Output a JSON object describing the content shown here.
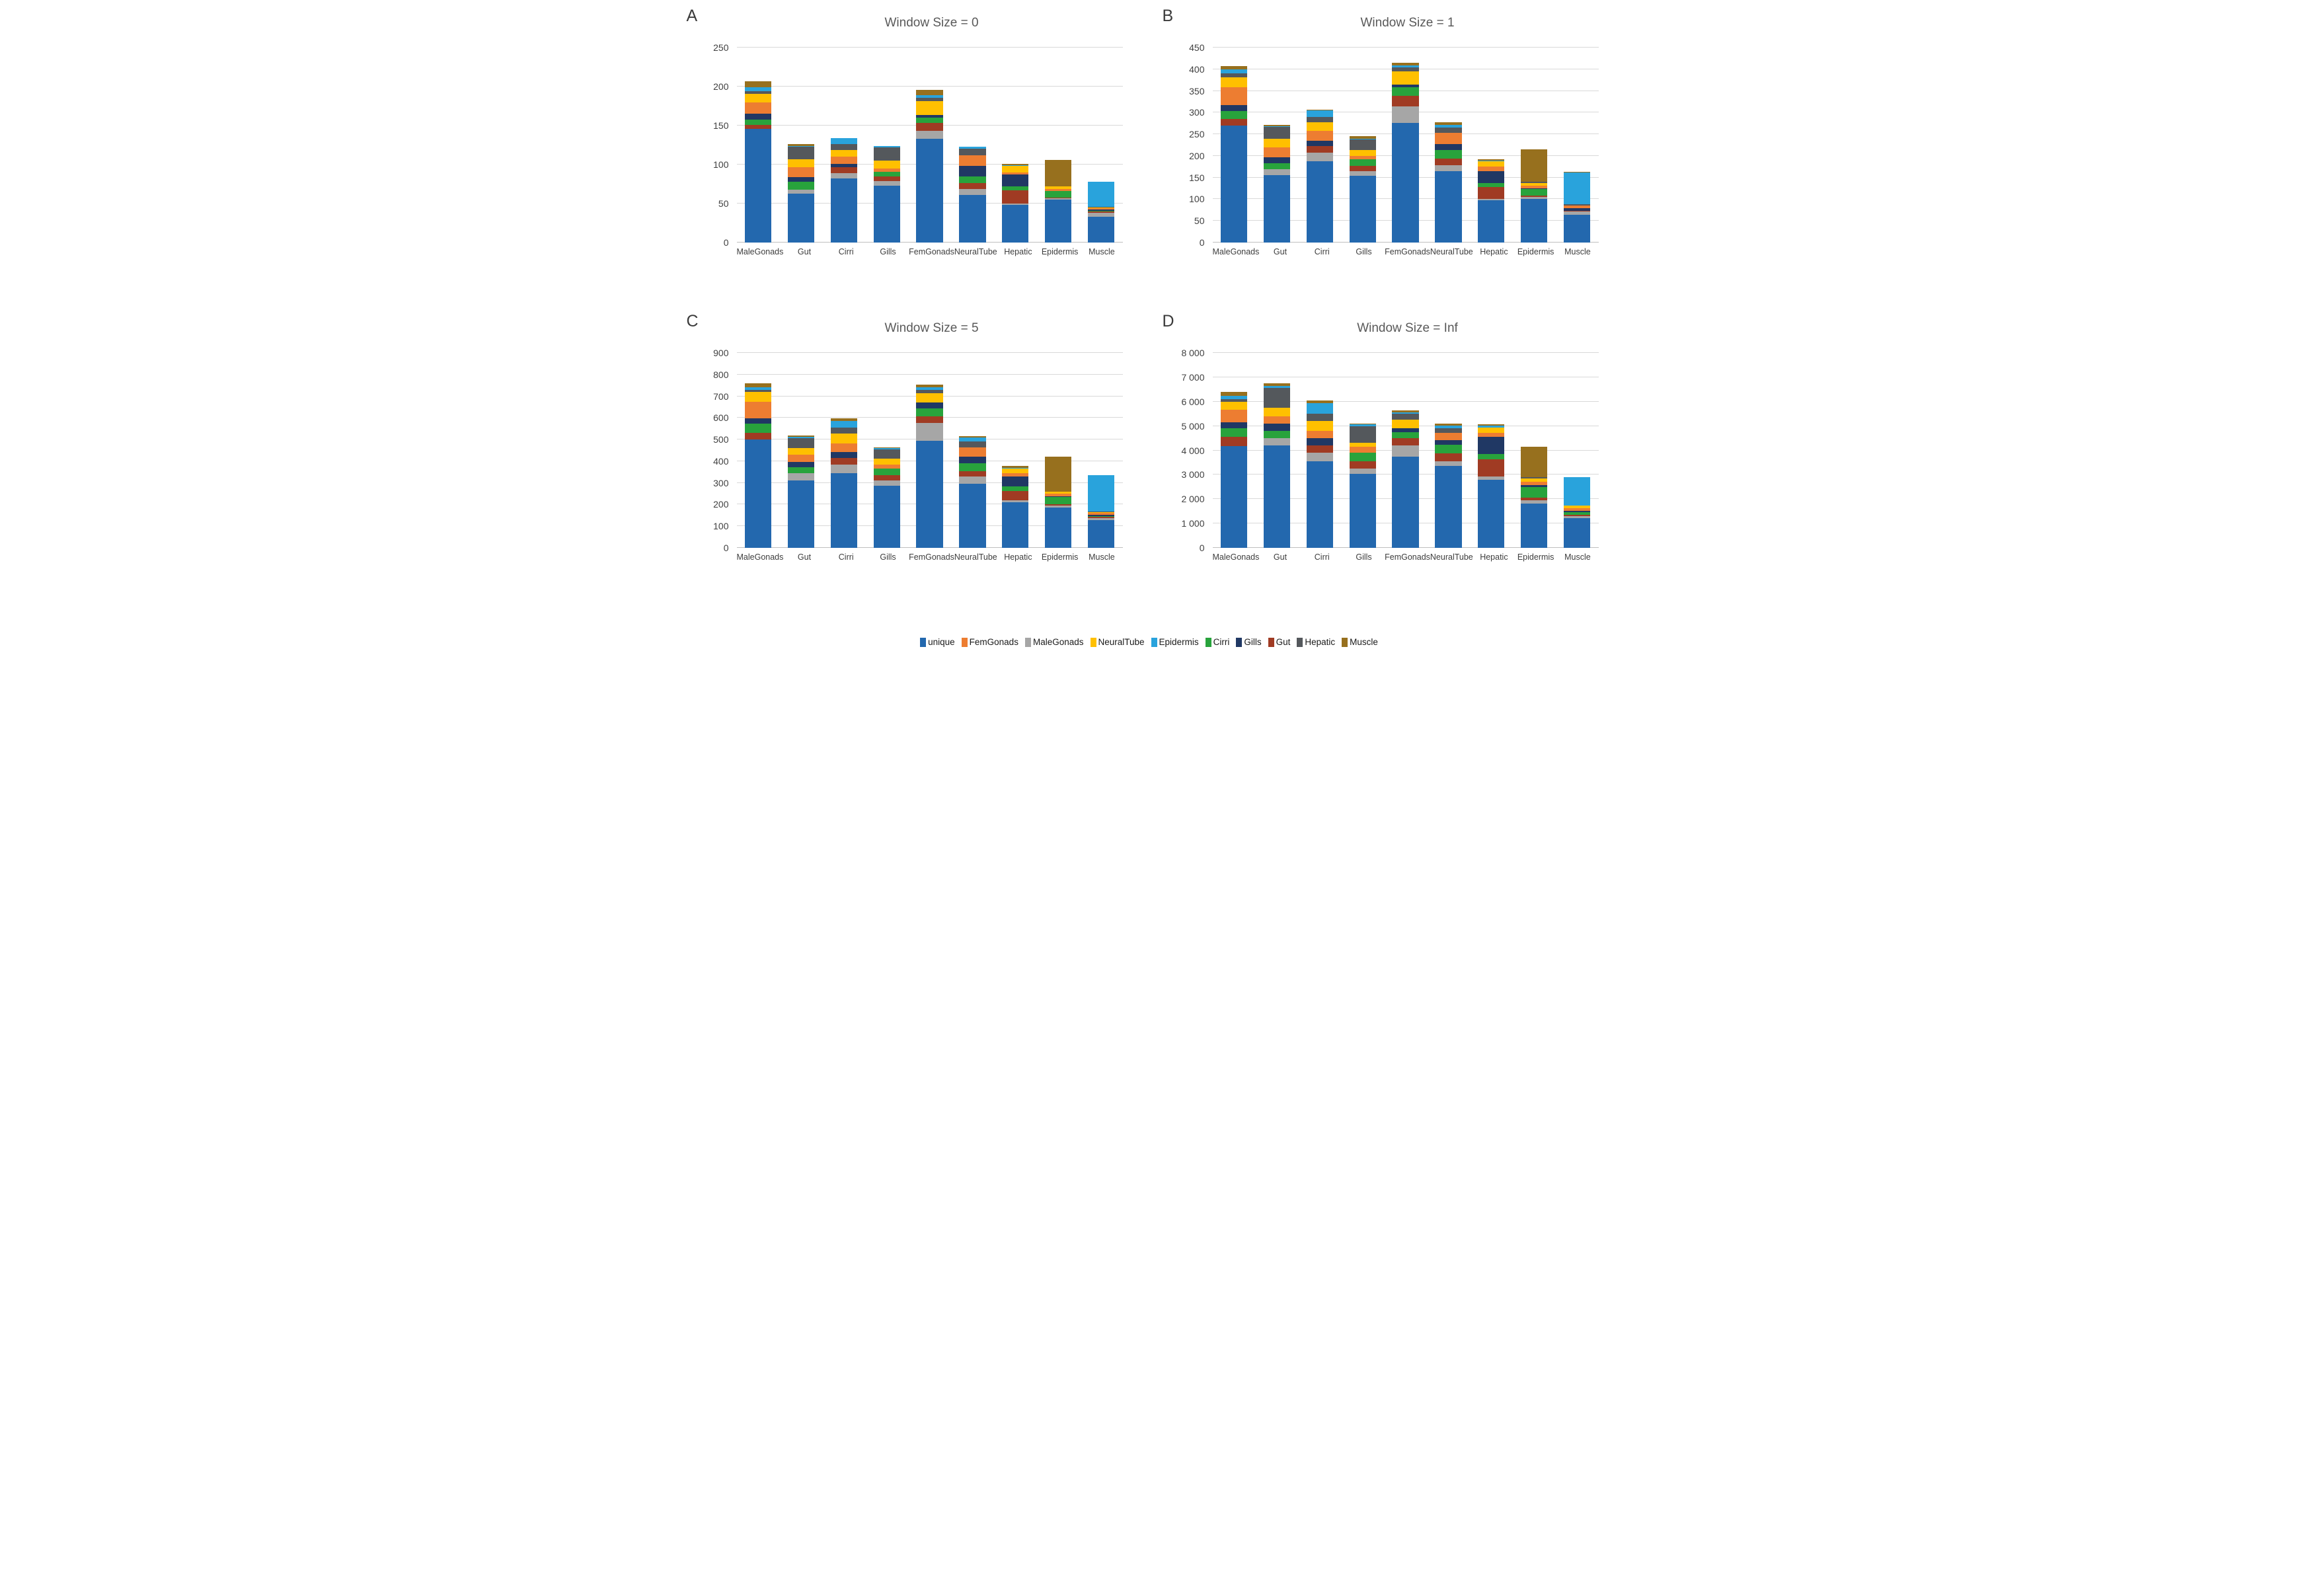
{
  "figure": {
    "background": "#ffffff",
    "gridline_color": "#d9d9d9",
    "axis_color": "#bfbfbf",
    "title_color": "#595959",
    "tick_color": "#404040"
  },
  "series_colors": {
    "unique": "#2368AE",
    "FemGonads": "#ED7D31",
    "MaleGonads": "#A6A6A6",
    "NeuralTube": "#FFC000",
    "Epidermis": "#29A3DC",
    "Cirri": "#28A33C",
    "Gills": "#203864",
    "Gut": "#A03B23",
    "Hepatic": "#54585C",
    "Muscle": "#97701E"
  },
  "stack_order": [
    "unique",
    "MaleGonads",
    "Gut",
    "Cirri",
    "Gills",
    "FemGonads",
    "NeuralTube",
    "Hepatic",
    "Epidermis",
    "Muscle"
  ],
  "legend": {
    "position": "bottom-center",
    "items": [
      {
        "label": "unique",
        "color": "#2368AE"
      },
      {
        "label": "FemGonads",
        "color": "#ED7D31"
      },
      {
        "label": "MaleGonads",
        "color": "#A6A6A6"
      },
      {
        "label": "NeuralTube",
        "color": "#FFC000"
      },
      {
        "label": "Epidermis",
        "color": "#29A3DC"
      },
      {
        "label": "Cirri",
        "color": "#28A33C"
      },
      {
        "label": "Gills",
        "color": "#203864"
      },
      {
        "label": "Gut",
        "color": "#A03B23"
      },
      {
        "label": "Hepatic",
        "color": "#54585C"
      },
      {
        "label": "Muscle",
        "color": "#97701E"
      }
    ]
  },
  "chart_data": [
    {
      "panel_label": "A",
      "type": "bar",
      "stacked": true,
      "title": "Window Size = 0",
      "grid": true,
      "ylim": [
        0,
        250
      ],
      "ytick_step": 50,
      "yticks": [
        "0",
        "50",
        "100",
        "150",
        "200",
        "250"
      ],
      "categories": [
        "MaleGonads",
        "Gut",
        "Cirri",
        "Gills",
        "FemGonads",
        "NeuralTube",
        "Hepatic",
        "Epidermis",
        "Muscle"
      ],
      "totals": [
        207,
        126,
        134,
        124,
        196,
        123,
        101,
        106,
        77
      ],
      "series": [
        {
          "name": "unique",
          "values": [
            146,
            63,
            82,
            73,
            133,
            61,
            48,
            55,
            33
          ]
        },
        {
          "name": "MaleGonads",
          "values": [
            0,
            5,
            7,
            6,
            10,
            8,
            2,
            2,
            5
          ]
        },
        {
          "name": "Gut",
          "values": [
            5,
            0,
            8,
            6,
            10,
            7,
            17,
            1,
            2
          ]
        },
        {
          "name": "Cirri",
          "values": [
            7,
            10,
            0,
            6,
            7,
            9,
            5,
            8,
            1
          ]
        },
        {
          "name": "Gills",
          "values": [
            7,
            6,
            4,
            0,
            4,
            13,
            15,
            0,
            1
          ]
        },
        {
          "name": "FemGonads",
          "values": [
            15,
            13,
            9,
            4,
            0,
            14,
            3,
            3,
            2
          ]
        },
        {
          "name": "NeuralTube",
          "values": [
            11,
            10,
            9,
            10,
            17,
            0,
            8,
            3,
            1
          ]
        },
        {
          "name": "Hepatic",
          "values": [
            3,
            16,
            7,
            17,
            5,
            8,
            0,
            0,
            1
          ]
        },
        {
          "name": "Epidermis",
          "values": [
            5,
            1,
            8,
            2,
            3,
            3,
            1,
            0,
            32
          ]
        },
        {
          "name": "Muscle",
          "values": [
            8,
            2,
            0,
            0,
            7,
            0,
            2,
            34,
            0
          ]
        }
      ]
    },
    {
      "panel_label": "B",
      "type": "bar",
      "stacked": true,
      "title": "Window Size = 1",
      "grid": true,
      "ylim": [
        0,
        450
      ],
      "ytick_step": 50,
      "yticks": [
        "0",
        "50",
        "100",
        "150",
        "200",
        "250",
        "300",
        "350",
        "400",
        "450"
      ],
      "categories": [
        "MaleGonads",
        "Gut",
        "Cirri",
        "Gills",
        "FemGonads",
        "NeuralTube",
        "Hepatic",
        "Epidermis",
        "Muscle"
      ],
      "totals": [
        408,
        272,
        307,
        246,
        415,
        277,
        192,
        216,
        164
      ],
      "series": [
        {
          "name": "unique",
          "values": [
            270,
            155,
            188,
            154,
            276,
            165,
            97,
            101,
            64
          ]
        },
        {
          "name": "MaleGonads",
          "values": [
            0,
            15,
            20,
            11,
            39,
            14,
            4,
            5,
            7
          ]
        },
        {
          "name": "Gut",
          "values": [
            16,
            0,
            14,
            12,
            23,
            15,
            27,
            2,
            2
          ]
        },
        {
          "name": "Cirri",
          "values": [
            17,
            13,
            0,
            15,
            20,
            20,
            9,
            15,
            1
          ]
        },
        {
          "name": "Gills",
          "values": [
            15,
            14,
            13,
            0,
            7,
            14,
            28,
            2,
            5
          ]
        },
        {
          "name": "FemGonads",
          "values": [
            41,
            23,
            23,
            8,
            0,
            26,
            10,
            7,
            6
          ]
        },
        {
          "name": "NeuralTube",
          "values": [
            22,
            20,
            20,
            14,
            30,
            0,
            13,
            6,
            1
          ]
        },
        {
          "name": "Hepatic",
          "values": [
            10,
            27,
            12,
            24,
            9,
            12,
            0,
            2,
            2
          ]
        },
        {
          "name": "Epidermis",
          "values": [
            8,
            2,
            15,
            2,
            5,
            6,
            2,
            0,
            74
          ]
        },
        {
          "name": "Muscle",
          "values": [
            9,
            3,
            2,
            6,
            6,
            5,
            2,
            76,
            2
          ]
        }
      ]
    },
    {
      "panel_label": "C",
      "type": "bar",
      "stacked": true,
      "title": "Window Size = 5",
      "grid": true,
      "ylim": [
        0,
        900
      ],
      "ytick_step": 100,
      "yticks": [
        "0",
        "100",
        "200",
        "300",
        "400",
        "500",
        "600",
        "700",
        "800",
        "900"
      ],
      "categories": [
        "MaleGonads",
        "Gut",
        "Cirri",
        "Gills",
        "FemGonads",
        "NeuralTube",
        "Hepatic",
        "Epidermis",
        "Muscle"
      ],
      "totals": [
        760,
        518,
        597,
        465,
        755,
        515,
        380,
        420,
        337
      ],
      "series": [
        {
          "name": "unique",
          "values": [
            500,
            310,
            345,
            287,
            495,
            295,
            212,
            185,
            127
          ]
        },
        {
          "name": "MaleGonads",
          "values": [
            0,
            35,
            38,
            25,
            82,
            35,
            8,
            10,
            10
          ]
        },
        {
          "name": "Gut",
          "values": [
            30,
            0,
            32,
            23,
            30,
            25,
            42,
            5,
            6
          ]
        },
        {
          "name": "Cirri",
          "values": [
            43,
            27,
            0,
            30,
            38,
            35,
            23,
            35,
            3
          ]
        },
        {
          "name": "Gills",
          "values": [
            25,
            26,
            28,
            0,
            27,
            30,
            45,
            3,
            6
          ]
        },
        {
          "name": "FemGonads",
          "values": [
            77,
            32,
            40,
            20,
            0,
            45,
            15,
            13,
            11
          ]
        },
        {
          "name": "NeuralTube",
          "values": [
            45,
            32,
            45,
            27,
            43,
            0,
            20,
            9,
            2
          ]
        },
        {
          "name": "Hepatic",
          "values": [
            8,
            46,
            27,
            43,
            13,
            25,
            0,
            0,
            2
          ]
        },
        {
          "name": "Epidermis",
          "values": [
            15,
            4,
            30,
            5,
            14,
            20,
            5,
            0,
            170
          ]
        },
        {
          "name": "Muscle",
          "values": [
            17,
            6,
            12,
            5,
            13,
            5,
            10,
            160,
            0
          ]
        }
      ]
    },
    {
      "panel_label": "D",
      "type": "bar",
      "stacked": true,
      "title": "Window Size = Inf",
      "grid": true,
      "ylim": [
        0,
        8000
      ],
      "ytick_step": 1000,
      "yticks": [
        "0",
        "1 000",
        "2 000",
        "3 000",
        "4 000",
        "5 000",
        "6 000",
        "7 000",
        "8 000"
      ],
      "categories": [
        "MaleGonads",
        "Gut",
        "Cirri",
        "Gills",
        "FemGonads",
        "NeuralTube",
        "Hepatic",
        "Epidermis",
        "Muscle"
      ],
      "totals": [
        6400,
        6750,
        6050,
        5100,
        5650,
        5100,
        5080,
        4140,
        2900
      ],
      "series": [
        {
          "name": "unique",
          "values": [
            4180,
            4200,
            3550,
            3050,
            3750,
            3350,
            2800,
            1815,
            1220
          ]
        },
        {
          "name": "MaleGonads",
          "values": [
            0,
            300,
            350,
            200,
            450,
            210,
            130,
            130,
            90
          ]
        },
        {
          "name": "Gut",
          "values": [
            390,
            0,
            300,
            300,
            300,
            310,
            700,
            130,
            60
          ]
        },
        {
          "name": "Cirri",
          "values": [
            330,
            300,
            0,
            350,
            250,
            360,
            230,
            420,
            90
          ]
        },
        {
          "name": "Gills",
          "values": [
            250,
            300,
            300,
            0,
            150,
            190,
            700,
            90,
            60
          ]
        },
        {
          "name": "FemGonads",
          "values": [
            520,
            300,
            300,
            250,
            0,
            290,
            160,
            130,
            120
          ]
        },
        {
          "name": "NeuralTube",
          "values": [
            330,
            350,
            400,
            150,
            350,
            0,
            210,
            130,
            90
          ]
        },
        {
          "name": "Hepatic",
          "values": [
            110,
            800,
            300,
            700,
            250,
            190,
            0,
            65,
            20
          ]
        },
        {
          "name": "Epidermis",
          "values": [
            140,
            100,
            450,
            60,
            70,
            120,
            80,
            0,
            1150
          ]
        },
        {
          "name": "Muscle",
          "values": [
            150,
            100,
            100,
            40,
            80,
            80,
            70,
            1230,
            0
          ]
        }
      ]
    }
  ]
}
